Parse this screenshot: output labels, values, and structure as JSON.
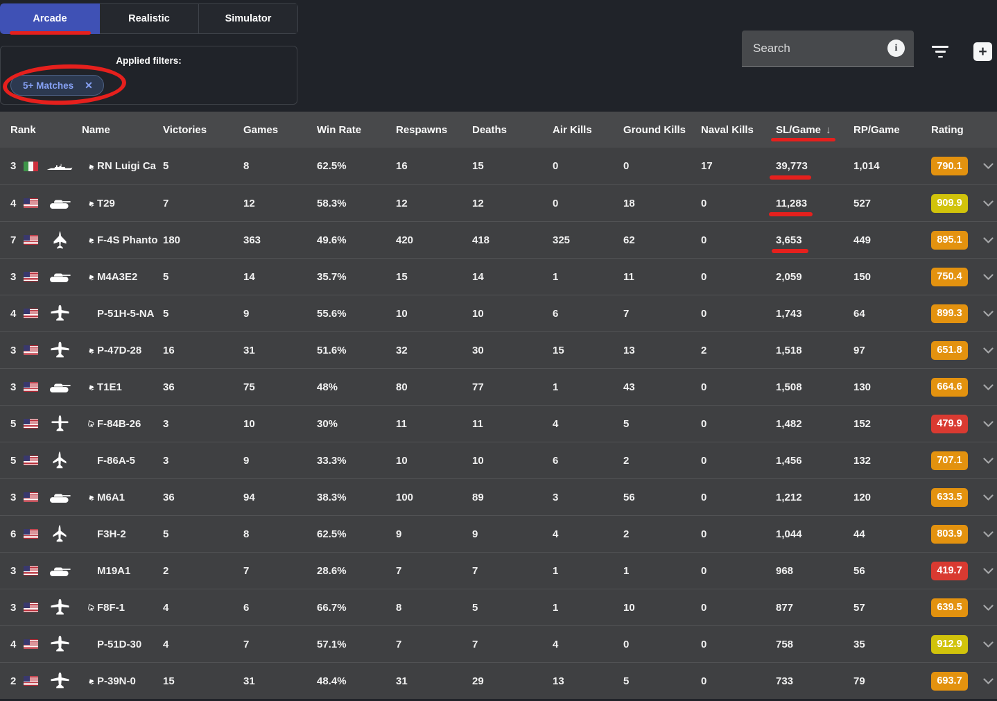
{
  "tabs": [
    {
      "label": "Arcade",
      "active": true
    },
    {
      "label": "Realistic",
      "active": false
    },
    {
      "label": "Simulator",
      "active": false
    }
  ],
  "filters": {
    "title": "Applied filters:",
    "chips": [
      {
        "label": "5+ Matches"
      }
    ]
  },
  "search": {
    "placeholder": "Search"
  },
  "icons": {
    "close": "✕",
    "add": "+",
    "info": "i",
    "sort_desc": "↓",
    "spade": "♠",
    "spade_outline": "♤"
  },
  "table": {
    "columns": [
      {
        "label": "Rank",
        "key": "rank"
      },
      {
        "label": "Name",
        "key": "name"
      },
      {
        "label": "Victories",
        "key": "victories"
      },
      {
        "label": "Games",
        "key": "games"
      },
      {
        "label": "Win Rate",
        "key": "win_rate"
      },
      {
        "label": "Respawns",
        "key": "respawns"
      },
      {
        "label": "Deaths",
        "key": "deaths"
      },
      {
        "label": "Air Kills",
        "key": "air_kills"
      },
      {
        "label": "Ground Kills",
        "key": "ground_kills"
      },
      {
        "label": "Naval Kills",
        "key": "naval_kills"
      },
      {
        "label": "SL/Game",
        "key": "sl_game",
        "sorted": "desc"
      },
      {
        "label": "RP/Game",
        "key": "rp_game"
      },
      {
        "label": "Rating",
        "key": "rating"
      }
    ]
  },
  "rows": [
    {
      "rank": "3",
      "country": "italy",
      "vehicle_type": "ship",
      "marker": "spade",
      "name": "RN Luigi Ca",
      "victories": "5",
      "games": "8",
      "win_rate": "62.5%",
      "respawns": "16",
      "deaths": "15",
      "air_kills": "0",
      "ground_kills": "0",
      "naval_kills": "17",
      "sl_game": "39,773",
      "rp_game": "1,014",
      "rating": "790.1",
      "rating_color": "orange"
    },
    {
      "rank": "4",
      "country": "usa",
      "vehicle_type": "tank",
      "marker": "spade",
      "name": "T29",
      "victories": "7",
      "games": "12",
      "win_rate": "58.3%",
      "respawns": "12",
      "deaths": "12",
      "air_kills": "0",
      "ground_kills": "18",
      "naval_kills": "0",
      "sl_game": "11,283",
      "rp_game": "527",
      "rating": "909.9",
      "rating_color": "yellow"
    },
    {
      "rank": "7",
      "country": "usa",
      "vehicle_type": "delta-jet",
      "marker": "spade",
      "name": "F-4S Phanto",
      "victories": "180",
      "games": "363",
      "win_rate": "49.6%",
      "respawns": "420",
      "deaths": "418",
      "air_kills": "325",
      "ground_kills": "62",
      "naval_kills": "0",
      "sl_game": "3,653",
      "rp_game": "449",
      "rating": "895.1",
      "rating_color": "orange"
    },
    {
      "rank": "3",
      "country": "usa",
      "vehicle_type": "tank",
      "marker": "spade",
      "name": "M4A3E2",
      "victories": "5",
      "games": "14",
      "win_rate": "35.7%",
      "respawns": "15",
      "deaths": "14",
      "air_kills": "1",
      "ground_kills": "11",
      "naval_kills": "0",
      "sl_game": "2,059",
      "rp_game": "150",
      "rating": "750.4",
      "rating_color": "orange"
    },
    {
      "rank": "4",
      "country": "usa",
      "vehicle_type": "prop-plane",
      "marker": null,
      "name": "P-51H-5-NA",
      "victories": "5",
      "games": "9",
      "win_rate": "55.6%",
      "respawns": "10",
      "deaths": "10",
      "air_kills": "6",
      "ground_kills": "7",
      "naval_kills": "0",
      "sl_game": "1,743",
      "rp_game": "64",
      "rating": "899.3",
      "rating_color": "orange"
    },
    {
      "rank": "3",
      "country": "usa",
      "vehicle_type": "prop-plane",
      "marker": "spade",
      "name": "P-47D-28",
      "victories": "16",
      "games": "31",
      "win_rate": "51.6%",
      "respawns": "32",
      "deaths": "30",
      "air_kills": "15",
      "ground_kills": "13",
      "naval_kills": "2",
      "sl_game": "1,518",
      "rp_game": "97",
      "rating": "651.8",
      "rating_color": "orange"
    },
    {
      "rank": "3",
      "country": "usa",
      "vehicle_type": "tank",
      "marker": "spade",
      "name": "T1E1",
      "victories": "36",
      "games": "75",
      "win_rate": "48%",
      "respawns": "80",
      "deaths": "77",
      "air_kills": "1",
      "ground_kills": "43",
      "naval_kills": "0",
      "sl_game": "1,508",
      "rp_game": "130",
      "rating": "664.6",
      "rating_color": "orange"
    },
    {
      "rank": "5",
      "country": "usa",
      "vehicle_type": "straight-jet",
      "marker": "spade_outline",
      "name": "F-84B-26",
      "victories": "3",
      "games": "10",
      "win_rate": "30%",
      "respawns": "11",
      "deaths": "11",
      "air_kills": "4",
      "ground_kills": "5",
      "naval_kills": "0",
      "sl_game": "1,482",
      "rp_game": "152",
      "rating": "479.9",
      "rating_color": "red"
    },
    {
      "rank": "5",
      "country": "usa",
      "vehicle_type": "swept-jet",
      "marker": null,
      "name": "F-86A-5",
      "victories": "3",
      "games": "9",
      "win_rate": "33.3%",
      "respawns": "10",
      "deaths": "10",
      "air_kills": "6",
      "ground_kills": "2",
      "naval_kills": "0",
      "sl_game": "1,456",
      "rp_game": "132",
      "rating": "707.1",
      "rating_color": "orange"
    },
    {
      "rank": "3",
      "country": "usa",
      "vehicle_type": "tank",
      "marker": "spade",
      "name": "M6A1",
      "victories": "36",
      "games": "94",
      "win_rate": "38.3%",
      "respawns": "100",
      "deaths": "89",
      "air_kills": "3",
      "ground_kills": "56",
      "naval_kills": "0",
      "sl_game": "1,212",
      "rp_game": "120",
      "rating": "633.5",
      "rating_color": "orange"
    },
    {
      "rank": "6",
      "country": "usa",
      "vehicle_type": "swept-jet",
      "marker": null,
      "name": "F3H-2",
      "victories": "5",
      "games": "8",
      "win_rate": "62.5%",
      "respawns": "9",
      "deaths": "9",
      "air_kills": "4",
      "ground_kills": "2",
      "naval_kills": "0",
      "sl_game": "1,044",
      "rp_game": "44",
      "rating": "803.9",
      "rating_color": "orange"
    },
    {
      "rank": "3",
      "country": "usa",
      "vehicle_type": "tank",
      "marker": null,
      "name": "M19A1",
      "victories": "2",
      "games": "7",
      "win_rate": "28.6%",
      "respawns": "7",
      "deaths": "7",
      "air_kills": "1",
      "ground_kills": "1",
      "naval_kills": "0",
      "sl_game": "968",
      "rp_game": "56",
      "rating": "419.7",
      "rating_color": "red"
    },
    {
      "rank": "3",
      "country": "usa",
      "vehicle_type": "prop-plane",
      "marker": "spade_outline",
      "name": "F8F-1",
      "victories": "4",
      "games": "6",
      "win_rate": "66.7%",
      "respawns": "8",
      "deaths": "5",
      "air_kills": "1",
      "ground_kills": "10",
      "naval_kills": "0",
      "sl_game": "877",
      "rp_game": "57",
      "rating": "639.5",
      "rating_color": "orange"
    },
    {
      "rank": "4",
      "country": "usa",
      "vehicle_type": "prop-plane",
      "marker": null,
      "name": "P-51D-30",
      "victories": "4",
      "games": "7",
      "win_rate": "57.1%",
      "respawns": "7",
      "deaths": "7",
      "air_kills": "4",
      "ground_kills": "0",
      "naval_kills": "0",
      "sl_game": "758",
      "rp_game": "35",
      "rating": "912.9",
      "rating_color": "yellow"
    },
    {
      "rank": "2",
      "country": "usa",
      "vehicle_type": "prop-plane",
      "marker": "spade",
      "name": "P-39N-0",
      "victories": "15",
      "games": "31",
      "win_rate": "48.4%",
      "respawns": "31",
      "deaths": "29",
      "air_kills": "13",
      "ground_kills": "5",
      "naval_kills": "0",
      "sl_game": "733",
      "rp_game": "79",
      "rating": "693.7",
      "rating_color": "orange"
    }
  ],
  "annotations": {
    "color": "#e6201d",
    "circled": [
      "5+ Matches filter chip"
    ],
    "underlined": [
      "Arcade tab",
      "SL/Game column header",
      "39,773",
      "11,283",
      "3,653"
    ]
  },
  "colors": {
    "page_bg": "#202329",
    "accent_blue": "#3f51b5",
    "chip_text": "#85a0f3",
    "table_header_bg": "#48494b",
    "row_bg": "#3f4042",
    "badge_orange": "#e3920f",
    "badge_yellow": "#d1c30b",
    "badge_red": "#d93a31",
    "annotation_red": "#e6201d"
  }
}
